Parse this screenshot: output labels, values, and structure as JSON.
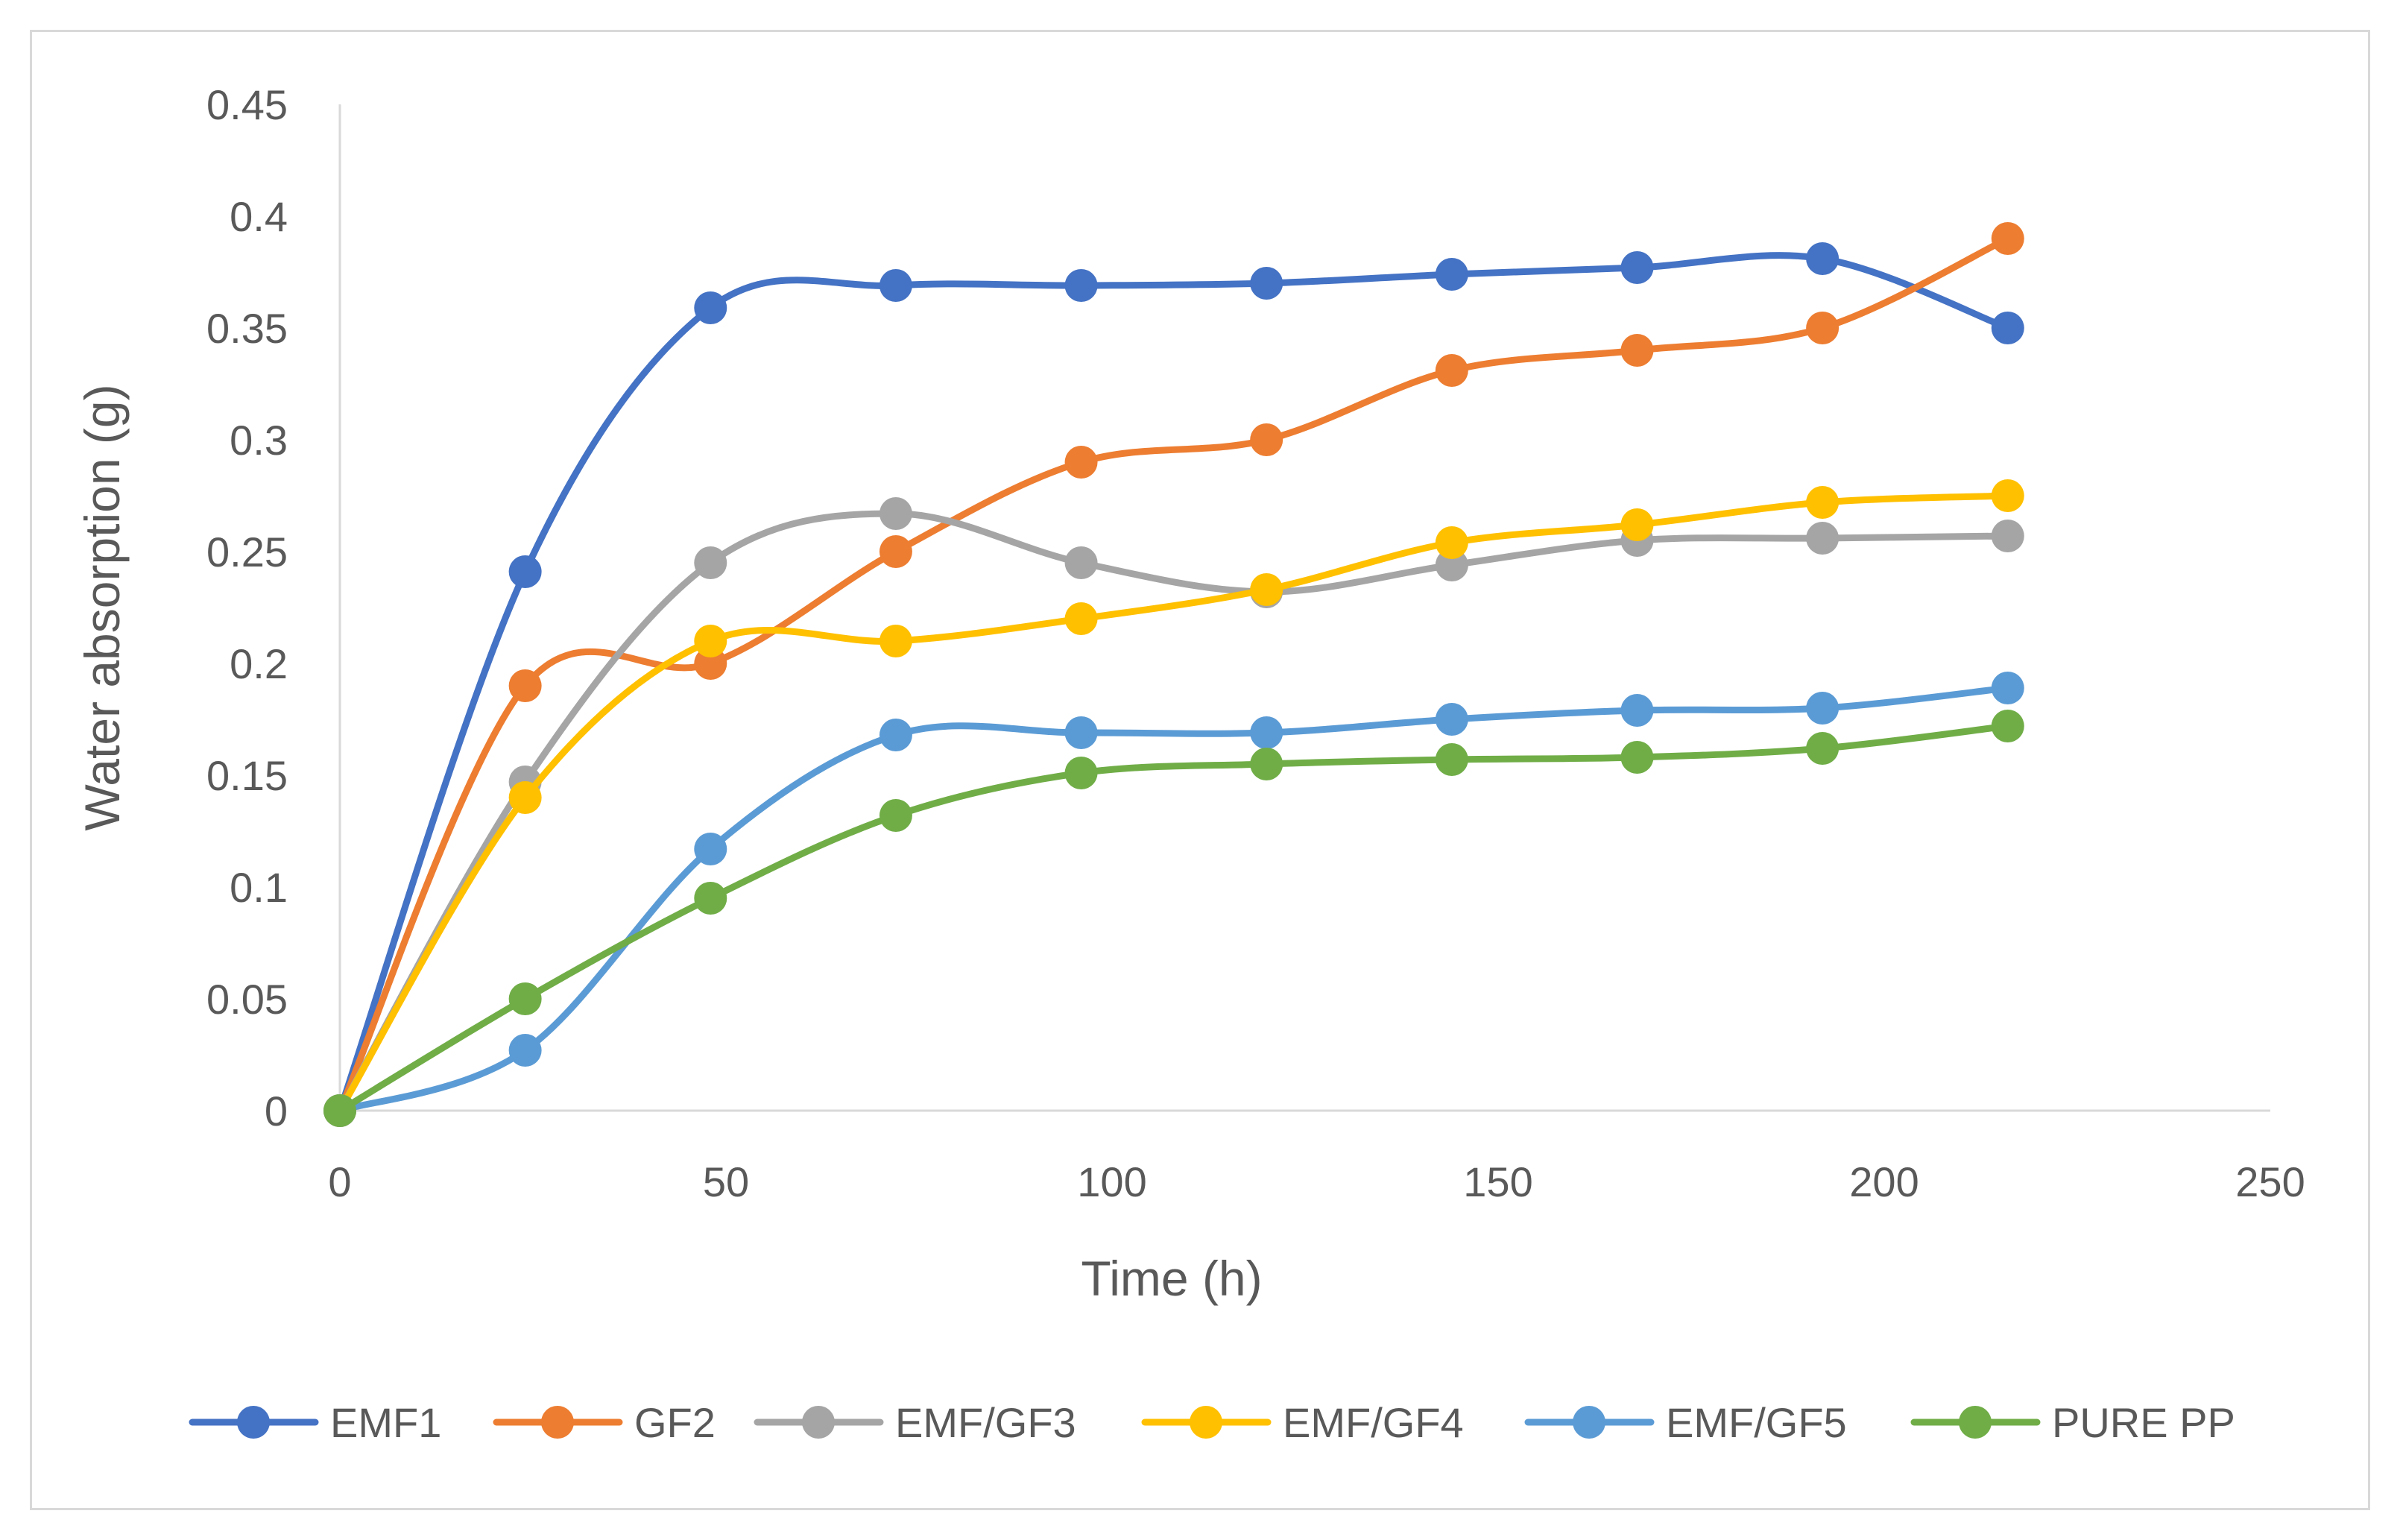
{
  "chart_data": {
    "type": "line",
    "title": "",
    "xlabel": "Time (h)",
    "ylabel": "Water absorption (g)",
    "xlim": [
      0,
      250
    ],
    "ylim": [
      0,
      0.45
    ],
    "xticks": [
      0,
      50,
      100,
      150,
      200,
      250
    ],
    "yticks": [
      0,
      0.05,
      0.1,
      0.15,
      0.2,
      0.25,
      0.3,
      0.35,
      0.4,
      0.45
    ],
    "xtick_labels": [
      "0",
      "50",
      "100",
      "150",
      "200",
      "250"
    ],
    "ytick_labels": [
      "0",
      "0.05",
      "0.1",
      "0.15",
      "0.2",
      "0.25",
      "0.3",
      "0.35",
      "0.4",
      "0.45"
    ],
    "grid": false,
    "legend_position": "bottom",
    "smooth": true,
    "x": [
      0,
      24,
      48,
      72,
      96,
      120,
      144,
      168,
      192,
      216
    ],
    "series": [
      {
        "name": "EMF1",
        "color": "#4472C4",
        "values": [
          0,
          0.241,
          0.359,
          0.369,
          0.369,
          0.37,
          0.374,
          0.377,
          0.381,
          0.35
        ]
      },
      {
        "name": "GF2",
        "color": "#ED7D31",
        "values": [
          0,
          0.19,
          0.2,
          0.25,
          0.29,
          0.3,
          0.331,
          0.34,
          0.35,
          0.39
        ]
      },
      {
        "name": "EMF/GF3",
        "color": "#A5A5A5",
        "values": [
          0,
          0.147,
          0.245,
          0.267,
          0.245,
          0.232,
          0.244,
          0.255,
          0.256,
          0.257
        ]
      },
      {
        "name": "EMF/GF4",
        "color": "#FFC000",
        "values": [
          0,
          0.14,
          0.21,
          0.21,
          0.22,
          0.233,
          0.254,
          0.262,
          0.272,
          0.275
        ]
      },
      {
        "name": "EMF/GF5",
        "color": "#5B9BD5",
        "values": [
          0,
          0.027,
          0.117,
          0.168,
          0.169,
          0.169,
          0.175,
          0.179,
          0.18,
          0.189
        ]
      },
      {
        "name": "PURE PP",
        "color": "#70AD47",
        "values": [
          0,
          0.05,
          0.095,
          0.132,
          0.151,
          0.155,
          0.157,
          0.158,
          0.162,
          0.172
        ]
      }
    ]
  }
}
